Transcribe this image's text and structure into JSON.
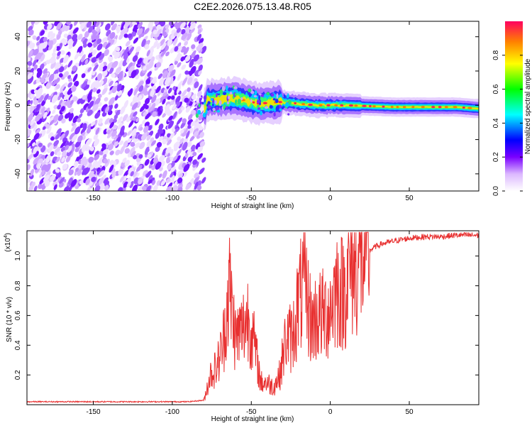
{
  "title": "C2E2.2026.075.13.48.R05",
  "chart_data": [
    {
      "type": "heatmap",
      "xlabel": "Height of straight line (km)",
      "ylabel": "Frequency (Hz)",
      "xlim": [
        -192,
        94
      ],
      "ylim": [
        -50,
        49
      ],
      "x_ticks": [
        -150,
        -100,
        -50,
        0,
        50
      ],
      "y_ticks": [
        -40,
        -20,
        0,
        20,
        40
      ],
      "noise_region_x": [
        -192,
        -80
      ],
      "signal_center_hz": [
        {
          "x": -78,
          "y": 3
        },
        {
          "x": -60,
          "y": 4
        },
        {
          "x": -45,
          "y": 1
        },
        {
          "x": -30,
          "y": 2
        },
        {
          "x": -10,
          "y": 0
        },
        {
          "x": 10,
          "y": 0
        },
        {
          "x": 40,
          "y": -1
        },
        {
          "x": 80,
          "y": -1
        },
        {
          "x": 94,
          "y": -2
        }
      ],
      "colorbar": {
        "label": "Normalized spectral amplitude",
        "range": [
          0,
          1
        ],
        "ticks": [
          0.0,
          0.2,
          0.4,
          0.6,
          0.8
        ]
      }
    },
    {
      "type": "line",
      "xlabel": "Height of straight line (km)",
      "ylabel": "SNR (10 * v/v)",
      "y_exponent_label": "(x10",
      "y_exponent_sup": "4",
      "xlim": [
        -192,
        94
      ],
      "ylim": [
        0,
        1.17
      ],
      "x_ticks": [
        -150,
        -100,
        -50,
        0,
        50
      ],
      "y_ticks": [
        0.2,
        0.4,
        0.6,
        0.8,
        1.0
      ],
      "color": "#e83030",
      "x": [
        -192,
        -170,
        -150,
        -130,
        -110,
        -90,
        -80,
        -76,
        -72,
        -68,
        -64,
        -60,
        -56,
        -52,
        -48,
        -44,
        -40,
        -36,
        -32,
        -28,
        -24,
        -20,
        -16,
        -12,
        -8,
        -4,
        0,
        4,
        8,
        12,
        16,
        20,
        24,
        28,
        32,
        36,
        40,
        50,
        60,
        70,
        80,
        94
      ],
      "values": [
        0.02,
        0.02,
        0.02,
        0.02,
        0.02,
        0.02,
        0.03,
        0.2,
        0.25,
        0.4,
        0.8,
        0.45,
        0.5,
        0.6,
        0.4,
        0.15,
        0.15,
        0.12,
        0.2,
        0.45,
        0.45,
        0.7,
        0.8,
        0.55,
        0.6,
        0.6,
        0.65,
        0.8,
        0.75,
        0.9,
        0.95,
        1.0,
        1.03,
        1.06,
        1.08,
        1.09,
        1.1,
        1.12,
        1.13,
        1.13,
        1.14,
        1.14
      ]
    }
  ]
}
